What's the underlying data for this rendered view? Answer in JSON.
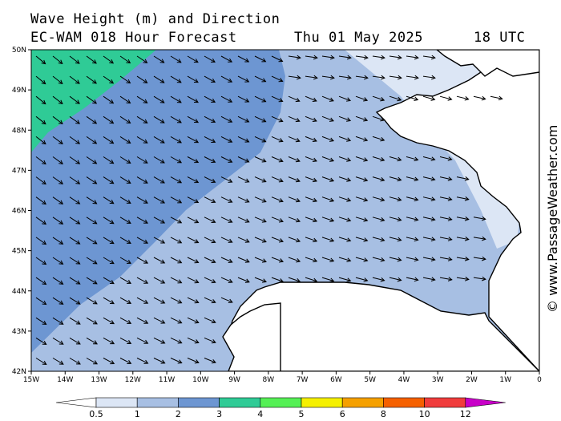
{
  "title_line1": "Wave Height (m) and Direction",
  "title_model": "EC-WAM 018 Hour Forecast",
  "title_date": "Thu 01 May 2025",
  "title_time": "18 UTC",
  "credit": "© www.PassageWeather.com",
  "lat_labels": [
    "50N",
    "49N",
    "48N",
    "47N",
    "46N",
    "45N",
    "44N",
    "43N",
    "42N"
  ],
  "lon_labels": [
    "15W",
    "14W",
    "13W",
    "12W",
    "11W",
    "10W",
    "9W",
    "8W",
    "7W",
    "6W",
    "5W",
    "4W",
    "3W",
    "2W",
    "1W",
    "0"
  ],
  "legend": {
    "labels": [
      "0.5",
      "1",
      "2",
      "3",
      "4",
      "5",
      "6",
      "8",
      "10",
      "12"
    ],
    "colors": [
      "#dce6f5",
      "#a7bfe3",
      "#6d96d2",
      "#2fcb96",
      "#55f055",
      "#f5f000",
      "#f5a000",
      "#f56000",
      "#f03c3c",
      "#b40000",
      "#c800c8"
    ]
  },
  "colors": {
    "band_0_5_1": "#dce6f5",
    "band_1_2": "#a7bfe3",
    "band_2_3": "#6d96d2",
    "band_3_4": "#2fcb96",
    "land": "#ffffff",
    "coast": "#000000"
  }
}
